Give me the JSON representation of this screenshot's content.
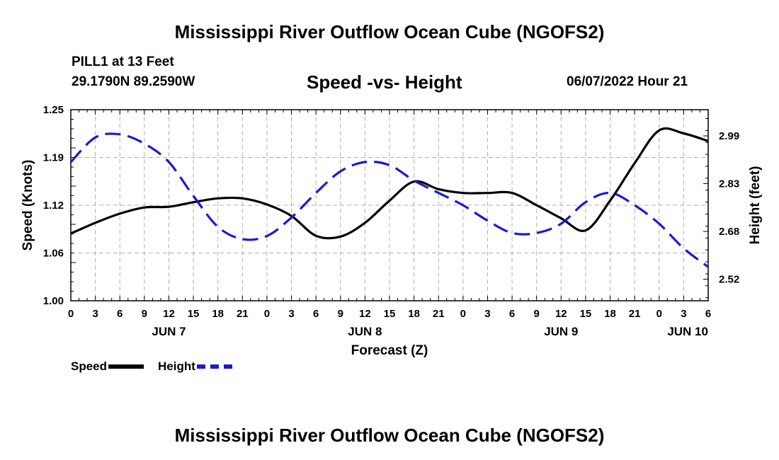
{
  "title": "Mississippi River Outflow Ocean Cube (NGOFS2)",
  "station": {
    "name": "PILL1 at 13 Feet",
    "coords": "29.1790N  89.2590W"
  },
  "subtitle": "Speed -vs- Height",
  "run_datetime": "06/07/2022 Hour 21",
  "legend": {
    "speed_label": "Speed",
    "height_label": "Height"
  },
  "bottom_title": "Mississippi River Outflow Ocean Cube (NGOFS2)",
  "colors": {
    "speed": "#000000",
    "height": "#1a1ad0",
    "grid": "#b0b0b0"
  },
  "chart_data": {
    "type": "line",
    "xlabel": "Forecast (Z)",
    "ylabel_left": "Speed (Knots)",
    "ylabel_right": "Height (feet)",
    "x_unit": "forecast hour",
    "xlim": [
      0,
      78
    ],
    "ylim_left": [
      1.0,
      1.25
    ],
    "ylim_right": [
      2.45,
      3.07
    ],
    "left_ticks": [
      "1.00",
      "1.06",
      "1.12",
      "1.19",
      "1.25"
    ],
    "left_tick_values": [
      1.0,
      1.0625,
      1.125,
      1.1875,
      1.25
    ],
    "right_ticks": [
      "2.52",
      "2.68",
      "2.83",
      "2.99"
    ],
    "right_tick_values": [
      2.52,
      2.675,
      2.83,
      2.985
    ],
    "x_tick_labels": [
      "0",
      "3",
      "6",
      "9",
      "12",
      "15",
      "18",
      "21",
      "0",
      "3",
      "6",
      "9",
      "12",
      "15",
      "18",
      "21",
      "0",
      "3",
      "6",
      "9",
      "12",
      "15",
      "18",
      "21",
      "0",
      "3",
      "6"
    ],
    "date_labels": [
      {
        "label": "JUN 7",
        "hour": 12
      },
      {
        "label": "JUN 8",
        "hour": 36
      },
      {
        "label": "JUN 9",
        "hour": 60
      },
      {
        "label": "JUN 10",
        "hour": 75.5
      }
    ],
    "series": [
      {
        "name": "Speed",
        "axis": "left",
        "style": "solid",
        "x": [
          0,
          3,
          6,
          9,
          12,
          15,
          18,
          21,
          24,
          27,
          30,
          33,
          36,
          39,
          42,
          45,
          48,
          51,
          54,
          57,
          60,
          63,
          66,
          69,
          72,
          75,
          78
        ],
        "values": [
          1.088,
          1.102,
          1.114,
          1.122,
          1.123,
          1.129,
          1.134,
          1.134,
          1.126,
          1.111,
          1.085,
          1.084,
          1.102,
          1.131,
          1.156,
          1.146,
          1.141,
          1.141,
          1.141,
          1.125,
          1.108,
          1.092,
          1.131,
          1.18,
          1.223,
          1.219,
          1.209
        ]
      },
      {
        "name": "Height",
        "axis": "right",
        "style": "dashed",
        "x": [
          0,
          3,
          6,
          9,
          12,
          15,
          18,
          21,
          24,
          27,
          30,
          33,
          36,
          39,
          42,
          45,
          48,
          51,
          54,
          57,
          60,
          63,
          66,
          69,
          72,
          75,
          78
        ],
        "values": [
          2.9,
          2.98,
          2.99,
          2.96,
          2.9,
          2.79,
          2.69,
          2.65,
          2.66,
          2.72,
          2.8,
          2.87,
          2.9,
          2.89,
          2.84,
          2.8,
          2.76,
          2.71,
          2.67,
          2.67,
          2.7,
          2.77,
          2.8,
          2.76,
          2.7,
          2.62,
          2.56
        ]
      }
    ]
  }
}
